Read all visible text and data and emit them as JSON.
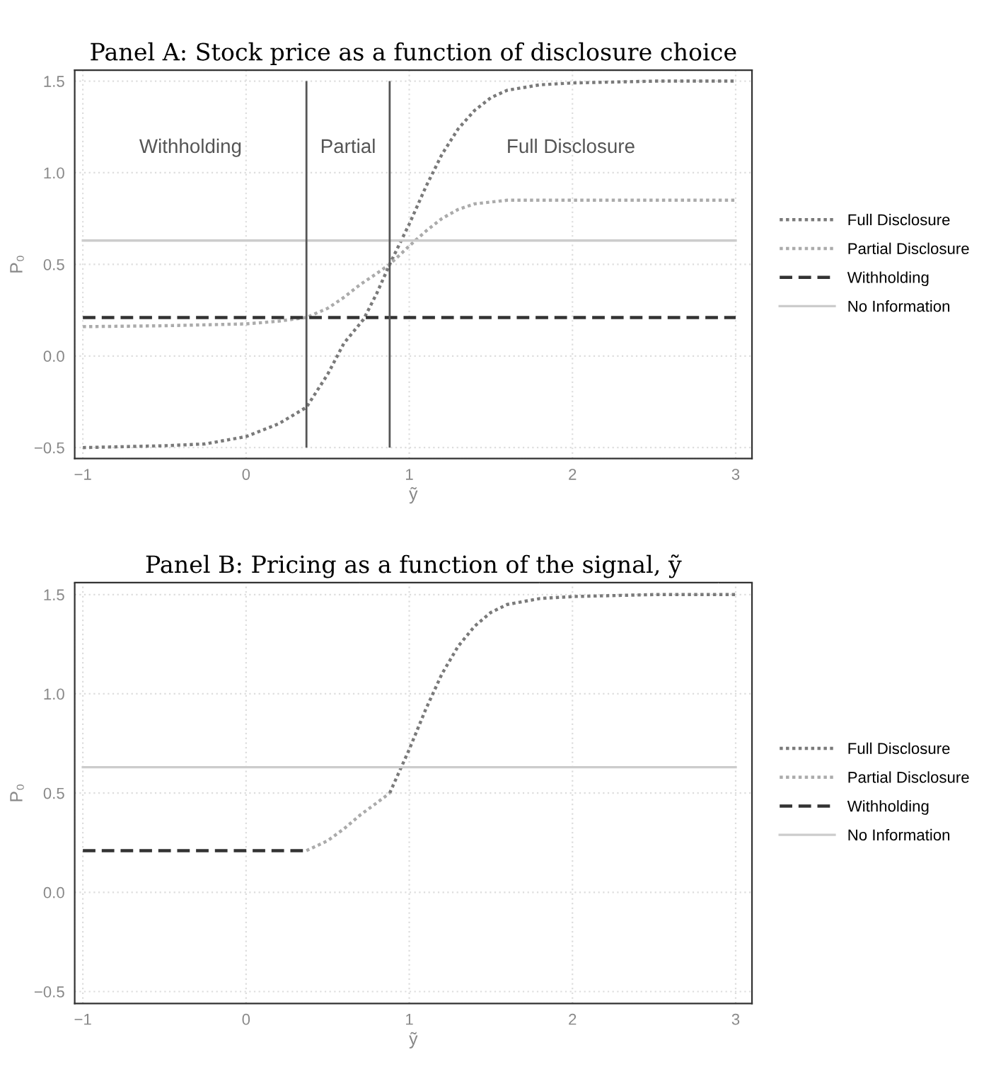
{
  "chart_data": [
    {
      "type": "line",
      "title": "Panel A: Stock price as a function of disclosure choice",
      "xlabel": "ỹ",
      "ylabel": "P₀",
      "xlim": [
        -1.05,
        3.1
      ],
      "ylim": [
        -0.56,
        1.56
      ],
      "xticks": [
        {
          "value": -1,
          "label": "−1"
        },
        0,
        1,
        2,
        3
      ],
      "yticks": [
        {
          "value": -0.5,
          "label": "−0.5"
        },
        {
          "value": 0,
          "label": "0.0"
        },
        {
          "value": 0.5,
          "label": "0.5"
        },
        {
          "value": 1,
          "label": "1.0"
        },
        {
          "value": 1.5,
          "label": "1.5"
        }
      ],
      "grid": true,
      "legend": "right",
      "series": [
        {
          "name": "Full Disclosure",
          "color": "#7a7a7a",
          "line_style": "dotted",
          "x": [
            -1,
            -0.5,
            -0.25,
            0,
            0.2,
            0.37,
            0.5,
            0.6,
            0.72,
            0.8,
            0.88,
            1.0,
            1.1,
            1.2,
            1.3,
            1.4,
            1.5,
            1.6,
            1.8,
            2.0,
            2.5,
            3
          ],
          "values": [
            -0.5,
            -0.49,
            -0.48,
            -0.44,
            -0.37,
            -0.28,
            -0.1,
            0.07,
            0.2,
            0.34,
            0.5,
            0.72,
            0.92,
            1.1,
            1.24,
            1.34,
            1.41,
            1.45,
            1.48,
            1.49,
            1.5,
            1.5
          ]
        },
        {
          "name": "Partial Disclosure",
          "color": "#ababab",
          "line_style": "dotted",
          "x": [
            -1,
            -0.5,
            0,
            0.2,
            0.37,
            0.5,
            0.6,
            0.7,
            0.8,
            0.88,
            1.0,
            1.1,
            1.2,
            1.3,
            1.4,
            1.6,
            2,
            3
          ],
          "values": [
            0.16,
            0.165,
            0.175,
            0.19,
            0.21,
            0.26,
            0.32,
            0.39,
            0.45,
            0.5,
            0.6,
            0.68,
            0.75,
            0.8,
            0.83,
            0.85,
            0.85,
            0.85
          ]
        },
        {
          "name": "Withholding",
          "color": "#333333",
          "line_style": "dashed",
          "x": [
            -1,
            3
          ],
          "values": [
            0.21,
            0.21
          ]
        },
        {
          "name": "No Information",
          "color": "#cccccc",
          "line_style": "solid",
          "x": [
            -1,
            3
          ],
          "values": [
            0.63,
            0.63
          ]
        }
      ],
      "ref_lines": [
        {
          "axis": "x",
          "value": 0.37,
          "color": "#555555"
        },
        {
          "axis": "x",
          "value": 0.88,
          "color": "#555555"
        }
      ],
      "annotations": [
        "Withholding",
        "Partial",
        "Full Disclosure"
      ]
    },
    {
      "type": "line",
      "title": "Panel B: Pricing as a function of the signal, ỹ",
      "xlabel": "ỹ",
      "ylabel": "P₀",
      "xlim": [
        -1.05,
        3.1
      ],
      "ylim": [
        -0.56,
        1.56
      ],
      "xticks": [
        {
          "value": -1,
          "label": "−1"
        },
        0,
        1,
        2,
        3
      ],
      "yticks": [
        {
          "value": -0.5,
          "label": "−0.5"
        },
        {
          "value": 0,
          "label": "0.0"
        },
        {
          "value": 0.5,
          "label": "0.5"
        },
        {
          "value": 1,
          "label": "1.0"
        },
        {
          "value": 1.5,
          "label": "1.5"
        }
      ],
      "grid": true,
      "legend": "right",
      "series": [
        {
          "name": "Full Disclosure",
          "color": "#7a7a7a",
          "line_style": "dotted",
          "x": [
            0.88,
            1.0,
            1.1,
            1.2,
            1.3,
            1.4,
            1.5,
            1.6,
            1.8,
            2.0,
            2.5,
            3
          ],
          "values": [
            0.5,
            0.72,
            0.92,
            1.1,
            1.24,
            1.34,
            1.41,
            1.45,
            1.48,
            1.49,
            1.5,
            1.5
          ]
        },
        {
          "name": "Partial Disclosure",
          "color": "#ababab",
          "line_style": "dotted",
          "x": [
            0.37,
            0.5,
            0.6,
            0.7,
            0.8,
            0.88
          ],
          "values": [
            0.21,
            0.26,
            0.32,
            0.39,
            0.45,
            0.5
          ]
        },
        {
          "name": "Withholding",
          "color": "#333333",
          "line_style": "dashed",
          "x": [
            -1,
            0.37
          ],
          "values": [
            0.21,
            0.21
          ]
        },
        {
          "name": "No Information",
          "color": "#cccccc",
          "line_style": "solid",
          "x": [
            -1,
            3
          ],
          "values": [
            0.63,
            0.63
          ]
        }
      ]
    }
  ]
}
